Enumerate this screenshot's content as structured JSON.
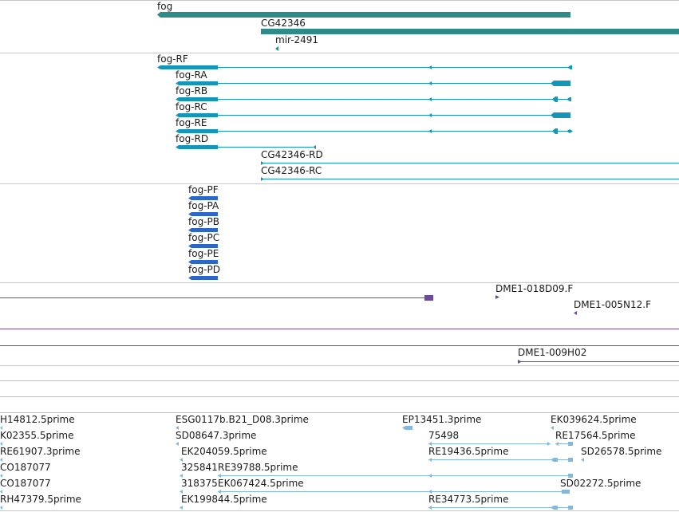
{
  "colors": {
    "gene": "#2f8a8a",
    "transcript": "#1595b8",
    "protein": "#2e66c8",
    "clone": "#6a4f98",
    "est": "#86b6d8",
    "separator": "#c8c8c8",
    "teal_line": "#9ccbd6"
  },
  "tracks": {
    "genes": [
      {
        "label": "fog",
        "strand": "-"
      },
      {
        "label": "CG42346",
        "strand": "+"
      },
      {
        "label": "mir-2491",
        "strand": "-"
      }
    ],
    "transcripts": [
      {
        "label": "fog-RF"
      },
      {
        "label": "fog-RA"
      },
      {
        "label": "fog-RB"
      },
      {
        "label": "fog-RC"
      },
      {
        "label": "fog-RE"
      },
      {
        "label": "fog-RD"
      },
      {
        "label": "CG42346-RD"
      },
      {
        "label": "CG42346-RC"
      }
    ],
    "proteins": [
      {
        "label": "fog-PF"
      },
      {
        "label": "fog-PA"
      },
      {
        "label": "fog-PB"
      },
      {
        "label": "fog-PC"
      },
      {
        "label": "fog-PE"
      },
      {
        "label": "fog-PD"
      }
    ],
    "clones": [
      {
        "label": "DME1-018D09.F"
      },
      {
        "label": "DME1-005N12.F"
      },
      {
        "label": "DME1-009H02"
      }
    ],
    "ests": [
      {
        "label": "H14812.5prime"
      },
      {
        "label": "ESG0117b.B21_D08.3prime"
      },
      {
        "label": "EP13451.3prime"
      },
      {
        "label": "EK039624.5prime"
      },
      {
        "label": "K02355.5prime"
      },
      {
        "label": "SD08647.3prime"
      },
      {
        "label": "75498"
      },
      {
        "label": "RE17564.5prime"
      },
      {
        "label": "RE61907.3prime"
      },
      {
        "label": "EK204059.5prime"
      },
      {
        "label": "RE19436.5prime"
      },
      {
        "label": "SD26578.5prime"
      },
      {
        "label": "CO187077"
      },
      {
        "label": "325841"
      },
      {
        "label": "RE39788.5prime"
      },
      {
        "label": "CO187077"
      },
      {
        "label": "318375"
      },
      {
        "label": "EK067424.5prime"
      },
      {
        "label": "SD02272.5prime"
      },
      {
        "label": "RH47379.5prime"
      },
      {
        "label": "EK199844.5prime"
      },
      {
        "label": "RE34773.5prime"
      }
    ]
  }
}
